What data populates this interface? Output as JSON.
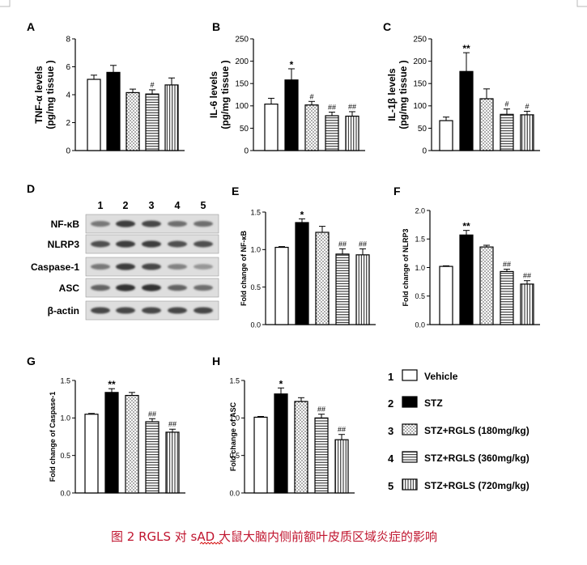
{
  "caption": {
    "prefix": "图 2 RGLS 对 ",
    "underlined": "sAD",
    "suffix": " 大鼠大脑内侧前额叶皮质区域炎症的影响",
    "color": "#c0152f"
  },
  "legend": {
    "entries": [
      {
        "num": "1",
        "label": "Vehicle",
        "pattern": "white"
      },
      {
        "num": "2",
        "label": "STZ",
        "pattern": "black"
      },
      {
        "num": "3",
        "label": "STZ+RGLS (180mg/kg)",
        "pattern": "dots"
      },
      {
        "num": "4",
        "label": "STZ+RGLS (360mg/kg)",
        "pattern": "hlines"
      },
      {
        "num": "5",
        "label": "STZ+RGLS (720mg/kg)",
        "pattern": "vlines"
      }
    ]
  },
  "blot": {
    "panel": "D",
    "lanes": [
      "1",
      "2",
      "3",
      "4",
      "5"
    ],
    "rows": [
      {
        "label": "NF-κB",
        "intensity": [
          0.55,
          0.85,
          0.8,
          0.6,
          0.6
        ]
      },
      {
        "label": "NLRP3",
        "intensity": [
          0.75,
          0.85,
          0.85,
          0.75,
          0.75
        ]
      },
      {
        "label": "Caspase-1",
        "intensity": [
          0.55,
          0.85,
          0.8,
          0.5,
          0.4
        ]
      },
      {
        "label": "ASC",
        "intensity": [
          0.65,
          0.9,
          0.9,
          0.65,
          0.6
        ]
      },
      {
        "label": "β-actin",
        "intensity": [
          0.8,
          0.8,
          0.8,
          0.8,
          0.8
        ]
      }
    ]
  },
  "chart_data": [
    {
      "panel": "A",
      "type": "bar",
      "ylabel": "TNF-α levels",
      "ylabel2": "(pg/mg tissue )",
      "ylim": [
        0,
        8
      ],
      "yticks": [
        0,
        2,
        4,
        6,
        8
      ],
      "yticklabels": [
        "0",
        "2",
        "4",
        "6",
        "8"
      ],
      "values": [
        5.1,
        5.6,
        4.15,
        4.05,
        4.7
      ],
      "errors": [
        0.3,
        0.5,
        0.25,
        0.3,
        0.5
      ],
      "annotations": [
        "",
        "",
        "",
        "#",
        ""
      ]
    },
    {
      "panel": "B",
      "type": "bar",
      "ylabel": "IL-6 levels",
      "ylabel2": "(pg/mg tissue )",
      "ylim": [
        0,
        250
      ],
      "yticks": [
        0,
        50,
        100,
        150,
        200,
        250
      ],
      "yticklabels": [
        "0",
        "50",
        "100",
        "150",
        "200",
        "250"
      ],
      "values": [
        104,
        158,
        102,
        78,
        77
      ],
      "errors": [
        13,
        25,
        8,
        8,
        10
      ],
      "annotations": [
        "",
        "*",
        "#",
        "##",
        "##"
      ]
    },
    {
      "panel": "C",
      "type": "bar",
      "ylabel": "IL-1β levels",
      "ylabel2": "(pg/mg tissue )",
      "ylim": [
        0,
        250
      ],
      "yticks": [
        0,
        50,
        100,
        150,
        200,
        250
      ],
      "yticklabels": [
        "0",
        "50",
        "100",
        "150",
        "200",
        "250"
      ],
      "values": [
        67,
        177,
        116,
        81,
        80
      ],
      "errors": [
        8,
        42,
        22,
        12,
        8
      ],
      "annotations": [
        "",
        "**",
        "",
        "#",
        "#"
      ]
    },
    {
      "panel": "E",
      "type": "bar",
      "ylabel": "Fold change of NF-κB",
      "ylabel2": "",
      "ylim": [
        0,
        1.5
      ],
      "yticks": [
        0,
        0.5,
        1.0,
        1.5
      ],
      "yticklabels": [
        "0.0",
        "0.5",
        "1.0",
        "1.5"
      ],
      "values": [
        1.03,
        1.36,
        1.23,
        0.94,
        0.93
      ],
      "errors": [
        0.01,
        0.05,
        0.08,
        0.07,
        0.08
      ],
      "annotations": [
        "",
        "*",
        "",
        "##",
        "##"
      ]
    },
    {
      "panel": "F",
      "type": "bar",
      "ylabel": "Fold change of NLRP3",
      "ylabel2": "",
      "ylim": [
        0,
        2.0
      ],
      "yticks": [
        0,
        0.5,
        1.0,
        1.5,
        2.0
      ],
      "yticklabels": [
        "0.0",
        "0.5",
        "1.0",
        "1.5",
        "2.0"
      ],
      "values": [
        1.02,
        1.57,
        1.36,
        0.93,
        0.71
      ],
      "errors": [
        0.01,
        0.08,
        0.03,
        0.04,
        0.06
      ],
      "annotations": [
        "",
        "**",
        "",
        "##",
        "##"
      ]
    },
    {
      "panel": "G",
      "type": "bar",
      "ylabel": "Fold change of Caspase-1",
      "ylabel2": "",
      "ylim": [
        0,
        1.5
      ],
      "yticks": [
        0,
        0.5,
        1.0,
        1.5
      ],
      "yticklabels": [
        "0.0",
        "0.5",
        "1.0",
        "1.5"
      ],
      "values": [
        1.05,
        1.34,
        1.3,
        0.95,
        0.81
      ],
      "errors": [
        0.01,
        0.05,
        0.04,
        0.04,
        0.04
      ],
      "annotations": [
        "",
        "**",
        "",
        "##",
        "##"
      ]
    },
    {
      "panel": "H",
      "type": "bar",
      "ylabel": "Fold change of ASC",
      "ylabel2": "",
      "ylim": [
        0,
        1.5
      ],
      "yticks": [
        0,
        0.5,
        1.0,
        1.5
      ],
      "yticklabels": [
        "0.0",
        "0.5",
        "1.0",
        "1.5"
      ],
      "values": [
        1.01,
        1.32,
        1.22,
        1.0,
        0.71
      ],
      "errors": [
        0.01,
        0.08,
        0.05,
        0.05,
        0.07
      ],
      "annotations": [
        "",
        "*",
        "",
        "##",
        "##"
      ]
    }
  ]
}
